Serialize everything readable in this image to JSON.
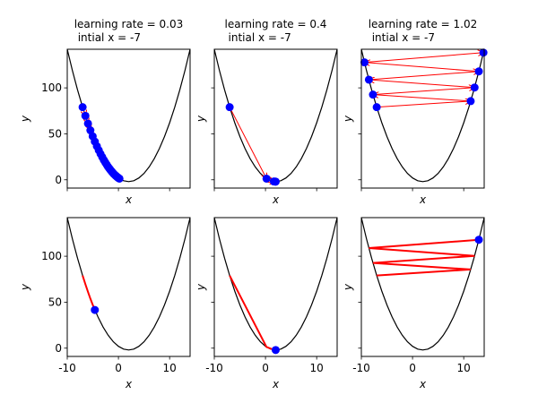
{
  "chart_data": [
    {
      "type": "scatter",
      "arrows": true,
      "title": "learning rate = 0.03",
      "subtitle": "intial x = -7",
      "xlabel": "x",
      "ylabel": "y",
      "xlim": [
        -10,
        14
      ],
      "ylim": [
        -9,
        142
      ],
      "xticks": [
        -10,
        0,
        10
      ],
      "yticks": [
        0,
        50,
        100
      ],
      "show_xtick_labels": false,
      "show_ytick_labels": true,
      "curve": {
        "color": "#000000",
        "x": [
          -10,
          -9,
          -8,
          -7,
          -6,
          -5,
          -4,
          -3,
          -2,
          -1,
          0,
          1,
          2,
          3,
          4,
          5,
          6,
          7,
          8,
          9,
          10,
          11,
          12,
          13,
          14
        ],
        "y": [
          142,
          119,
          98,
          79,
          62,
          47,
          34,
          23,
          14,
          7,
          2,
          -1,
          -2,
          -1,
          2,
          7,
          14,
          23,
          34,
          47,
          62,
          79,
          98,
          119,
          142
        ]
      },
      "color": "#ff0000",
      "marker_color": "#0000ff",
      "x": [
        -7,
        -6.46,
        -5.95,
        -5.48,
        -5.03,
        -4.61,
        -4.21,
        -3.84,
        -3.49,
        -3.16,
        -2.85,
        -2.56,
        -2.28,
        -2.03,
        -1.78,
        -1.56,
        -1.34,
        -1.14,
        -0.95,
        -0.78,
        -0.61,
        -0.45,
        -0.31,
        -0.17,
        -0.04,
        0.08,
        0.2
      ],
      "values": [
        79,
        69.57,
        61.2,
        53.81,
        47.28,
        41.56,
        36.53,
        32.07,
        28.14,
        24.63,
        21.52,
        18.79,
        16.36,
        14.22,
        12.32,
        10.67,
        9.19,
        7.86,
        6.7,
        5.73,
        4.86,
        4.05,
        3.35,
        2.71,
        2.16,
        1.69,
        1.24
      ]
    },
    {
      "type": "scatter",
      "arrows": true,
      "title": "learning rate = 0.4",
      "subtitle": "intial x = -7",
      "xlabel": "x",
      "ylabel": "y",
      "xlim": [
        -10,
        14
      ],
      "ylim": [
        -9,
        142
      ],
      "xticks": [
        -10,
        0,
        10
      ],
      "yticks": [
        0,
        50,
        100
      ],
      "show_xtick_labels": false,
      "show_ytick_labels": false,
      "curve": {
        "color": "#000000",
        "x": [
          -10,
          -9,
          -8,
          -7,
          -6,
          -5,
          -4,
          -3,
          -2,
          -1,
          0,
          1,
          2,
          3,
          4,
          5,
          6,
          7,
          8,
          9,
          10,
          11,
          12,
          13,
          14
        ],
        "y": [
          142,
          119,
          98,
          79,
          62,
          47,
          34,
          23,
          14,
          7,
          2,
          -1,
          -2,
          -1,
          2,
          7,
          14,
          23,
          34,
          47,
          62,
          79,
          98,
          119,
          142
        ]
      },
      "color": "#ff0000",
      "marker_color": "#0000ff",
      "x": [
        -7,
        0.2,
        1.64,
        1.93,
        1.99
      ],
      "values": [
        79,
        1.24,
        -1.87,
        -1.99,
        -2
      ]
    },
    {
      "type": "scatter",
      "arrows": true,
      "title": "learning rate = 1.02",
      "subtitle": "intial x = -7",
      "xlabel": "x",
      "ylabel": "y",
      "xlim": [
        -10,
        14
      ],
      "ylim": [
        -9,
        142
      ],
      "xticks": [
        -10,
        0,
        10
      ],
      "yticks": [
        0,
        50,
        100
      ],
      "show_xtick_labels": false,
      "show_ytick_labels": false,
      "curve": {
        "color": "#000000",
        "x": [
          -10,
          -9,
          -8,
          -7,
          -6,
          -5,
          -4,
          -3,
          -2,
          -1,
          0,
          1,
          2,
          3,
          4,
          5,
          6,
          7,
          8,
          9,
          10,
          11,
          12,
          13,
          14
        ],
        "y": [
          142,
          119,
          98,
          79,
          62,
          47,
          34,
          23,
          14,
          7,
          2,
          -1,
          -2,
          -1,
          2,
          7,
          14,
          23,
          34,
          47,
          62,
          79,
          98,
          119,
          142
        ]
      },
      "color": "#ff0000",
      "marker_color": "#0000ff",
      "x": [
        -7,
        11.36,
        -7.73,
        12.12,
        -8.53,
        12.95,
        -9.39,
        13.85
      ],
      "values": [
        79,
        85.6,
        92.67,
        100.4,
        108.9,
        117.9,
        127.7,
        138.4
      ]
    },
    {
      "type": "line",
      "arrows": false,
      "xlabel": "x",
      "ylabel": "y",
      "xlim": [
        -10,
        14
      ],
      "ylim": [
        -9,
        142
      ],
      "xticks": [
        -10,
        0,
        10
      ],
      "yticks": [
        0,
        50,
        100
      ],
      "show_xtick_labels": true,
      "show_ytick_labels": true,
      "curve": {
        "color": "#000000",
        "x": [
          -10,
          -9,
          -8,
          -7,
          -6,
          -5,
          -4,
          -3,
          -2,
          -1,
          0,
          1,
          2,
          3,
          4,
          5,
          6,
          7,
          8,
          9,
          10,
          11,
          12,
          13,
          14
        ],
        "y": [
          142,
          119,
          98,
          79,
          62,
          47,
          34,
          23,
          14,
          7,
          2,
          -1,
          -2,
          -1,
          2,
          7,
          14,
          23,
          34,
          47,
          62,
          79,
          98,
          119,
          142
        ]
      },
      "color": "#ff0000",
      "marker_color": "#0000ff",
      "x": [
        -7,
        -6.46,
        -5.95,
        -5.48,
        -5.03,
        -4.61
      ],
      "values": [
        79,
        69.57,
        61.2,
        53.81,
        47.28,
        41.56
      ]
    },
    {
      "type": "line",
      "arrows": false,
      "xlabel": "x",
      "ylabel": "y",
      "xlim": [
        -10,
        14
      ],
      "ylim": [
        -9,
        142
      ],
      "xticks": [
        -10,
        0,
        10
      ],
      "yticks": [
        0,
        50,
        100
      ],
      "show_xtick_labels": true,
      "show_ytick_labels": false,
      "curve": {
        "color": "#000000",
        "x": [
          -10,
          -9,
          -8,
          -7,
          -6,
          -5,
          -4,
          -3,
          -2,
          -1,
          0,
          1,
          2,
          3,
          4,
          5,
          6,
          7,
          8,
          9,
          10,
          11,
          12,
          13,
          14
        ],
        "y": [
          142,
          119,
          98,
          79,
          62,
          47,
          34,
          23,
          14,
          7,
          2,
          -1,
          -2,
          -1,
          2,
          7,
          14,
          23,
          34,
          47,
          62,
          79,
          98,
          119,
          142
        ]
      },
      "color": "#ff0000",
      "marker_color": "#0000ff",
      "x": [
        -7,
        0.2,
        1.64,
        1.93,
        1.99
      ],
      "values": [
        79,
        1.24,
        -1.87,
        -1.99,
        -2
      ]
    },
    {
      "type": "line",
      "arrows": false,
      "xlabel": "x",
      "ylabel": "y",
      "xlim": [
        -10,
        14
      ],
      "ylim": [
        -9,
        142
      ],
      "xticks": [
        -10,
        0,
        10
      ],
      "yticks": [
        0,
        50,
        100
      ],
      "show_xtick_labels": true,
      "show_ytick_labels": false,
      "curve": {
        "color": "#000000",
        "x": [
          -10,
          -9,
          -8,
          -7,
          -6,
          -5,
          -4,
          -3,
          -2,
          -1,
          0,
          1,
          2,
          3,
          4,
          5,
          6,
          7,
          8,
          9,
          10,
          11,
          12,
          13,
          14
        ],
        "y": [
          142,
          119,
          98,
          79,
          62,
          47,
          34,
          23,
          14,
          7,
          2,
          -1,
          -2,
          -1,
          2,
          7,
          14,
          23,
          34,
          47,
          62,
          79,
          98,
          119,
          142
        ]
      },
      "color": "#ff0000",
      "marker_color": "#0000ff",
      "x": [
        -7,
        11.36,
        -7.73,
        12.12,
        -8.53,
        12.95
      ],
      "values": [
        79,
        85.6,
        92.67,
        100.4,
        108.9,
        117.9
      ]
    }
  ]
}
